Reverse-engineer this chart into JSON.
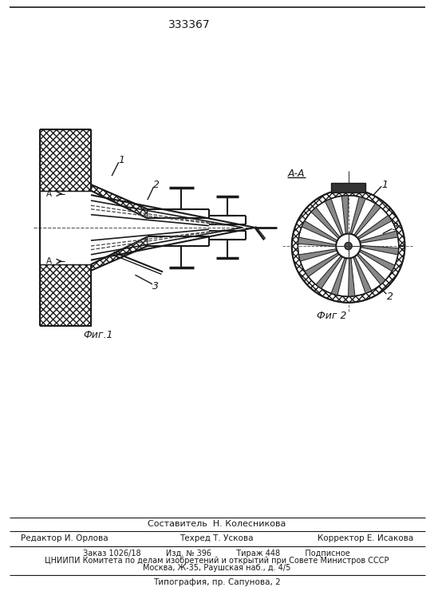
{
  "patent_number": "333367",
  "fig1_caption": "Фиг.1",
  "fig2_caption": "Фиг 2",
  "section_label": "А-А",
  "aa_label": "А-А",
  "composer_line": "Составитель  Н. Колесникова",
  "editor_label": "Редактор И. Орлова",
  "techred_label": "Техред Т. Ускова",
  "corrector_label": "Корректор Е. Исакова",
  "order_line": "Заказ 1026/18          Изд. № 396          Тираж 448          Подписное",
  "cniip_line1": "ЦНИИПИ Комитета по делам изобретений и открытий при Совете Министров СССР",
  "cniip_line2": "Москва, Ж-35, Раушская наб., д. 4/5",
  "print_line": "Типография, пр. Сапунова, 2",
  "bg_color": "#ffffff",
  "line_color": "#1a1a1a"
}
